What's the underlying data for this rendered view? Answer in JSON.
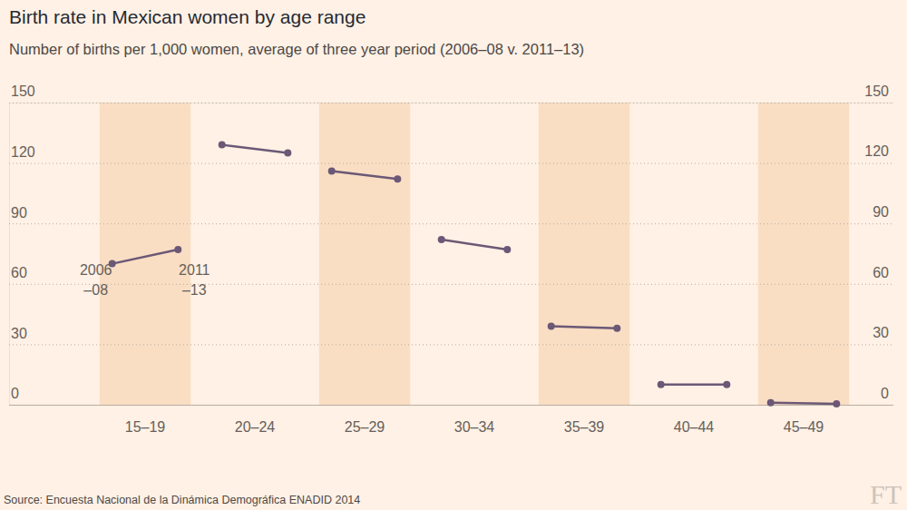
{
  "chart_data": {
    "type": "dumbbell",
    "title": "Birth rate in Mexican women by age range",
    "subtitle": "Number of births per 1,000 women, average of three year period (2006–08 v. 2011–13)",
    "source": "Source: Encuesta Nacional de la Dinámica Demográfica ENADID 2014",
    "logo": "FT",
    "categories": [
      "15–19",
      "20–24",
      "25–29",
      "30–34",
      "35–39",
      "40–44",
      "45–49"
    ],
    "series": [
      {
        "name": "2006\n–08",
        "color": "#6b5876",
        "marker": "circle",
        "values": [
          70,
          129,
          116,
          82,
          39,
          10,
          1
        ]
      },
      {
        "name": "2011\n–13",
        "color": "#6b5876",
        "marker": "circle",
        "values": [
          77,
          125,
          112,
          77,
          38,
          10,
          0.5
        ]
      }
    ],
    "ylim": [
      0,
      150
    ],
    "yticks": [
      0,
      30,
      60,
      90,
      120,
      150
    ],
    "grid": true
  }
}
